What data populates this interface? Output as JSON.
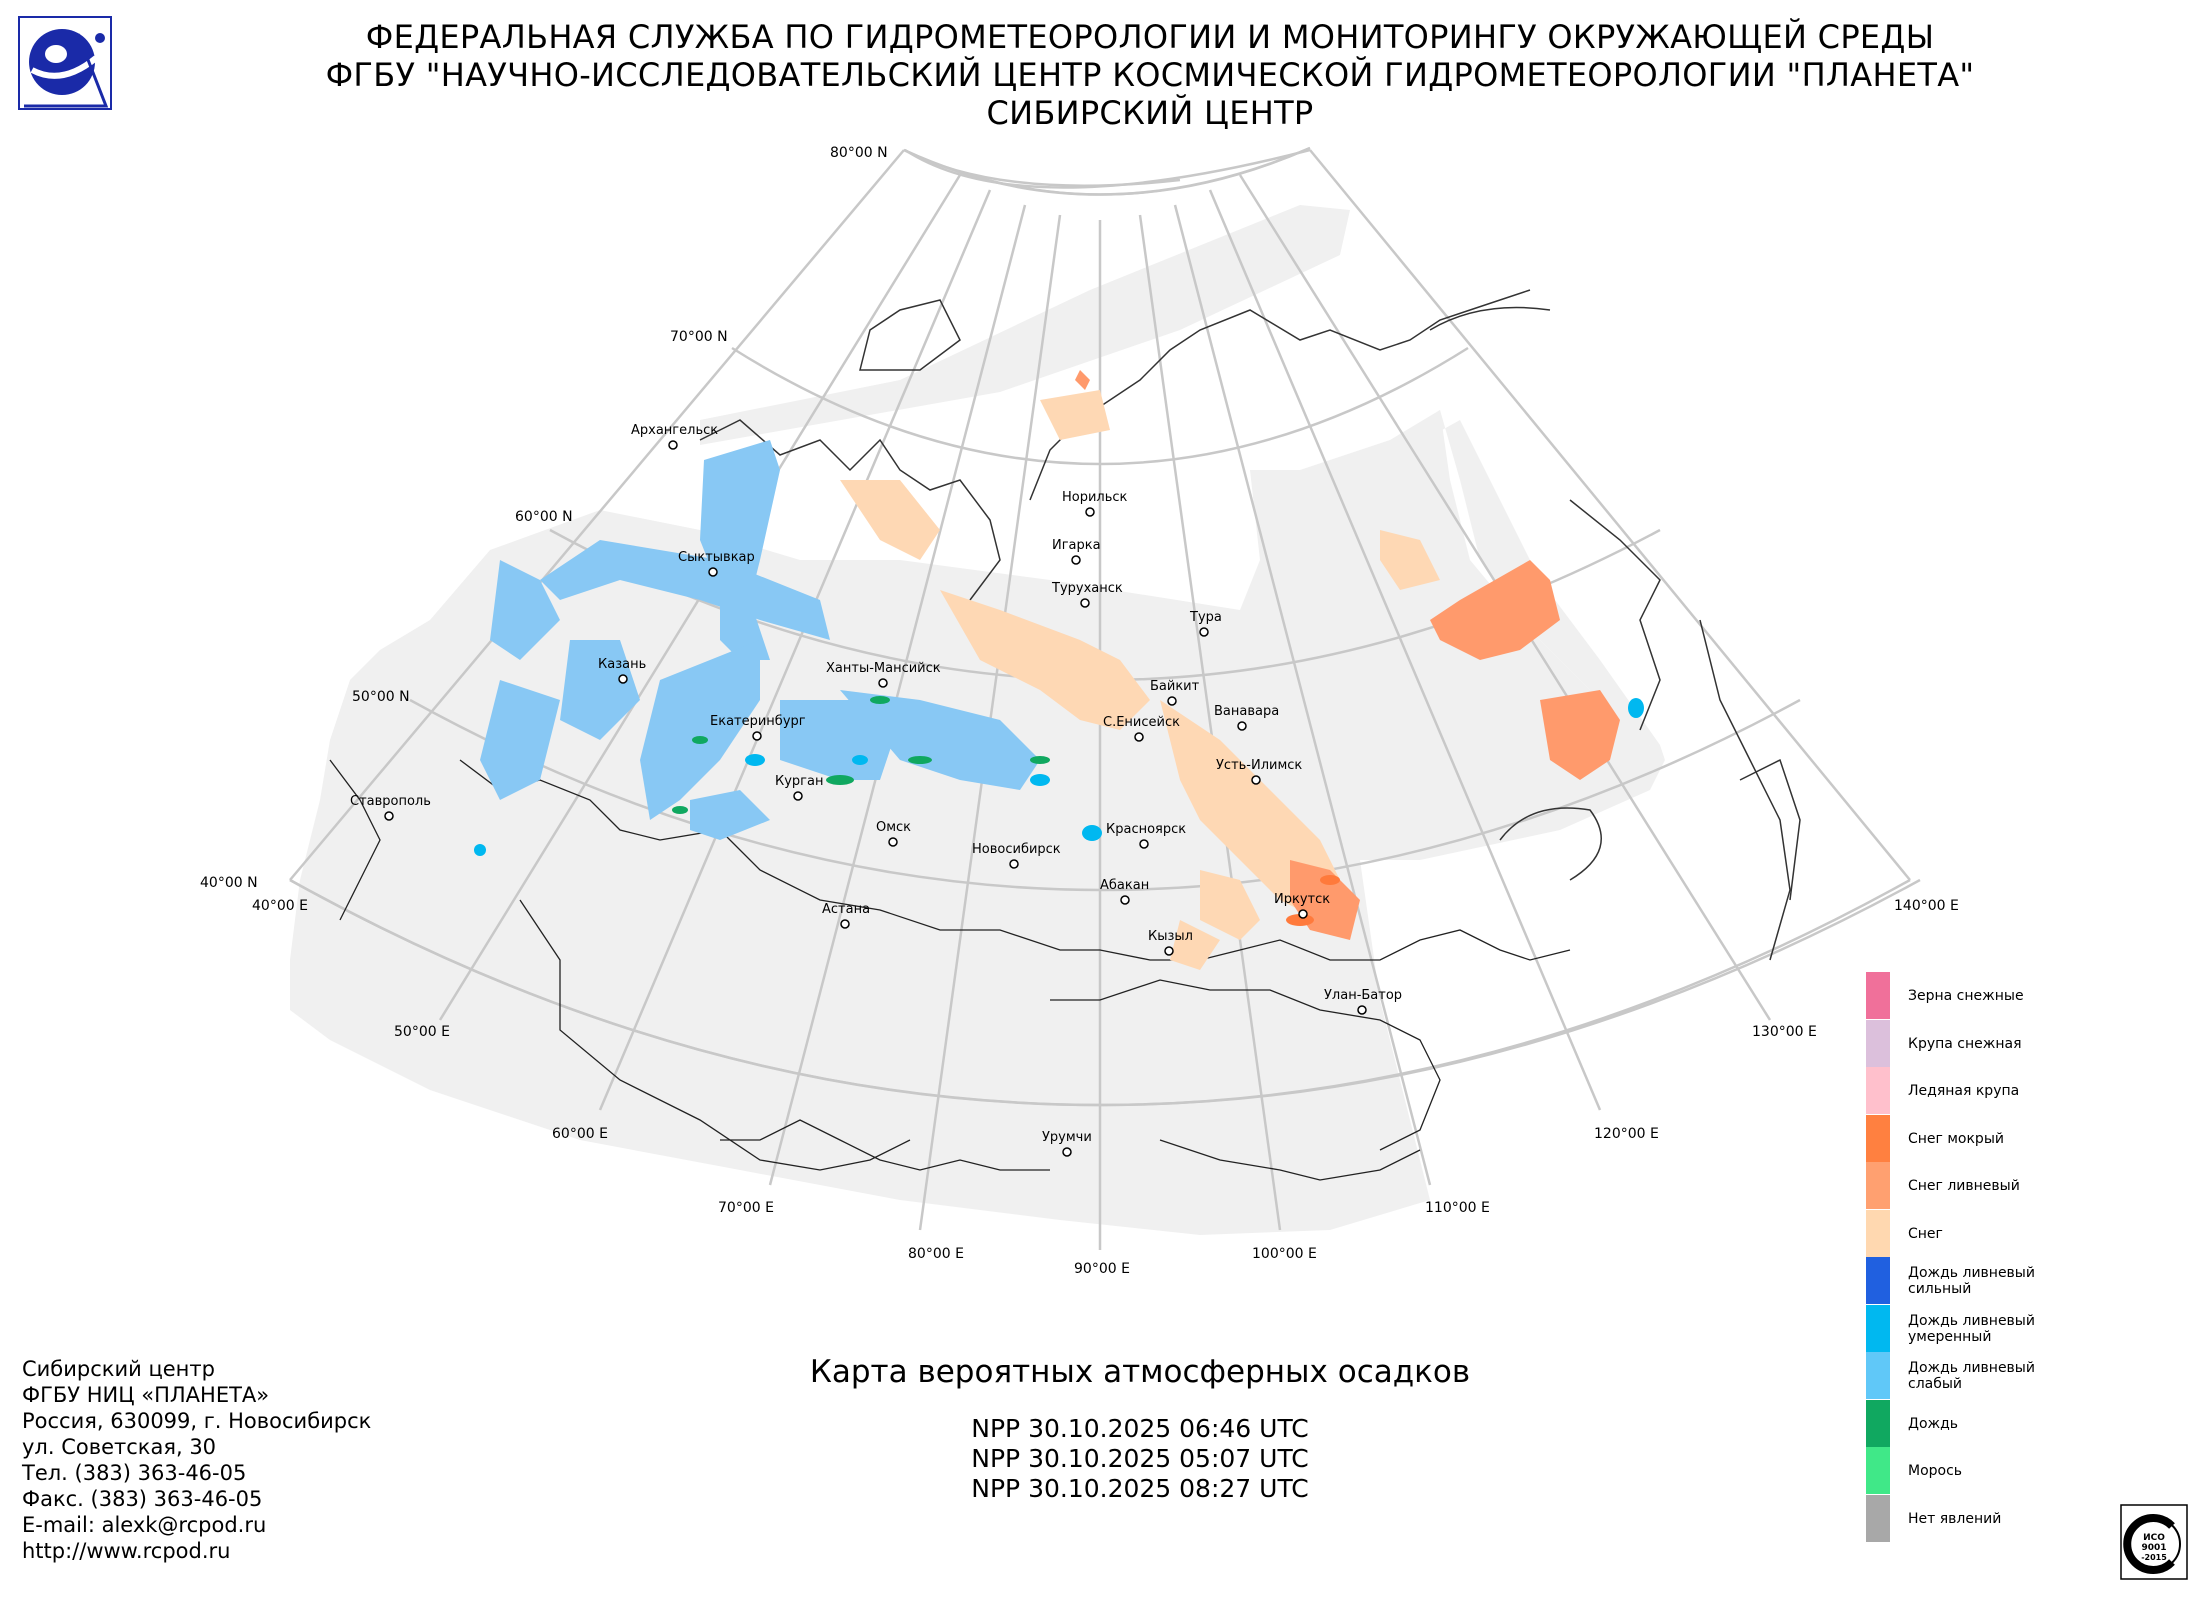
{
  "header": {
    "line1": "ФЕДЕРАЛЬНАЯ СЛУЖБА ПО ГИДРОМЕТЕОРОЛОГИИ И МОНИТОРИНГУ ОКРУЖАЮЩЕЙ СРЕДЫ",
    "line2": "ФГБУ \"НАУЧНО-ИССЛЕДОВАТЕЛЬСКИЙ ЦЕНТР КОСМИЧЕСКОЙ ГИДРОМЕТЕОРОЛОГИИ \"ПЛАНЕТА\"",
    "line3": "СИБИРСКИЙ ЦЕНТР"
  },
  "logo_icon": "planeta-globe-logo",
  "grid_labels": {
    "lat80": "80°00 N",
    "lat70": "70°00 N",
    "lat60": "60°00 N",
    "lat50": "50°00 N",
    "lat40": "40°00 N",
    "lon40": "40°00 E",
    "lon50": "50°00 E",
    "lon60": "60°00 E",
    "lon70": "70°00 E",
    "lon80": "80°00 E",
    "lon90": "90°00 E",
    "lon100": "100°00 E",
    "lon110": "110°00 E",
    "lon120": "120°00 E",
    "lon130": "130°00 E",
    "lon140": "140°00 E"
  },
  "cities": {
    "arkhangelsk": "Архангельск",
    "syktyvkar": "Сыктывкар",
    "kazan": "Казань",
    "stavropol": "Ставрополь",
    "yekaterinburg": "Екатеринбург",
    "kurgan": "Курган",
    "khanty": "Ханты-Мансийск",
    "omsk": "Омск",
    "astana": "Астана",
    "novosibirsk": "Новосибирск",
    "norilsk": "Норильск",
    "igarka": "Игарка",
    "turukhansk": "Туруханск",
    "tura": "Тура",
    "baykit": "Байкит",
    "yeniseysk": "С.Енисейск",
    "vanavara": "Ванавара",
    "ust_ilimsk": "Усть-Илимск",
    "krasnoyarsk": "Красноярск",
    "abakan": "Абакан",
    "kyzyl": "Кызыл",
    "irkutsk": "Иркутск",
    "ulan_bator": "Улан-Батор",
    "urumqi": "Урумчи"
  },
  "contact": {
    "line1": "Сибирский центр",
    "line2": "ФГБУ НИЦ «ПЛАНЕТА»",
    "line3": "Россия, 630099, г. Новосибирск",
    "line4": "ул. Советская, 30",
    "line5": "Тел. (383) 363-46-05",
    "line6": "Факс. (383) 363-46-05",
    "line7": "E-mail: alexk@rcpod.ru",
    "line8": "http://www.rcpod.ru"
  },
  "map_title": "Карта вероятных атмосферных осадков",
  "passes": [
    "NPP 30.10.2025  06:46 UTC",
    "NPP 30.10.2025  05:07 UTC",
    "NPP 30.10.2025  08:27 UTC"
  ],
  "legend": [
    {
      "label": "Зерна снежные",
      "color": "#f0709a"
    },
    {
      "label": "Крупа снежная",
      "color": "#dcc0dc"
    },
    {
      "label": "Ледяная крупа",
      "color": "#ffc0cc"
    },
    {
      "label": "Снег мокрый",
      "color": "#ff8040"
    },
    {
      "label": "Снег ливневый",
      "color": "#ffa070"
    },
    {
      "label": "Снег",
      "color": "#ffd8b0"
    },
    {
      "label": "Дождь ливневый сильный",
      "color": "#2060e0"
    },
    {
      "label": "Дождь ливневый умеренный",
      "color": "#00b8f0"
    },
    {
      "label": "Дождь ливневый слабый",
      "color": "#60c8f8"
    },
    {
      "label": "Дождь",
      "color": "#10a860"
    },
    {
      "label": "Морось",
      "color": "#40e888"
    },
    {
      "label": "Нет явлений",
      "color": "#a8a8a8"
    }
  ],
  "cert_icon": "iso-9001-certificate-stamp",
  "cert": {
    "line1": "ИСО",
    "line2": "9001",
    "line3": "-2015"
  }
}
